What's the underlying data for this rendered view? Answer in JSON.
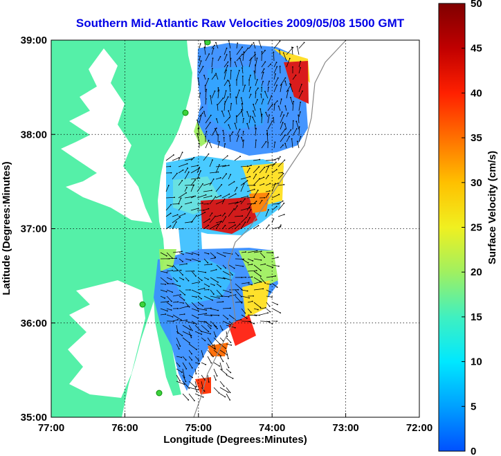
{
  "title": "Southern Mid-Atlantic Raw Velocities 2009/05/08 1500 GMT",
  "axes": {
    "xlabel": "Longitude (Degrees:Minutes)",
    "ylabel": "Latitude (Degrees:Minutes)",
    "xticks": [
      "77:00",
      "76:00",
      "75:00",
      "74:00",
      "73:00",
      "72:00"
    ],
    "yticks": [
      "39:00",
      "38:00",
      "37:00",
      "36:00",
      "35:00"
    ]
  },
  "colorbar": {
    "label": "Surface Velocity (cm/s)",
    "ticks": [
      "0",
      "5",
      "10",
      "15",
      "20",
      "25",
      "30",
      "35",
      "40",
      "45",
      "50"
    ],
    "min": 0,
    "max": 50,
    "colors": [
      "#0050ff",
      "#00a0ff",
      "#00e8ff",
      "#40f0c0",
      "#a0f060",
      "#f0f020",
      "#ffc000",
      "#ff7000",
      "#ff2000",
      "#c00000",
      "#800000"
    ]
  },
  "map": {
    "land_color": "#55f0a8",
    "grid": true,
    "stations": [
      "station-1",
      "station-2",
      "station-3",
      "station-4"
    ]
  }
}
